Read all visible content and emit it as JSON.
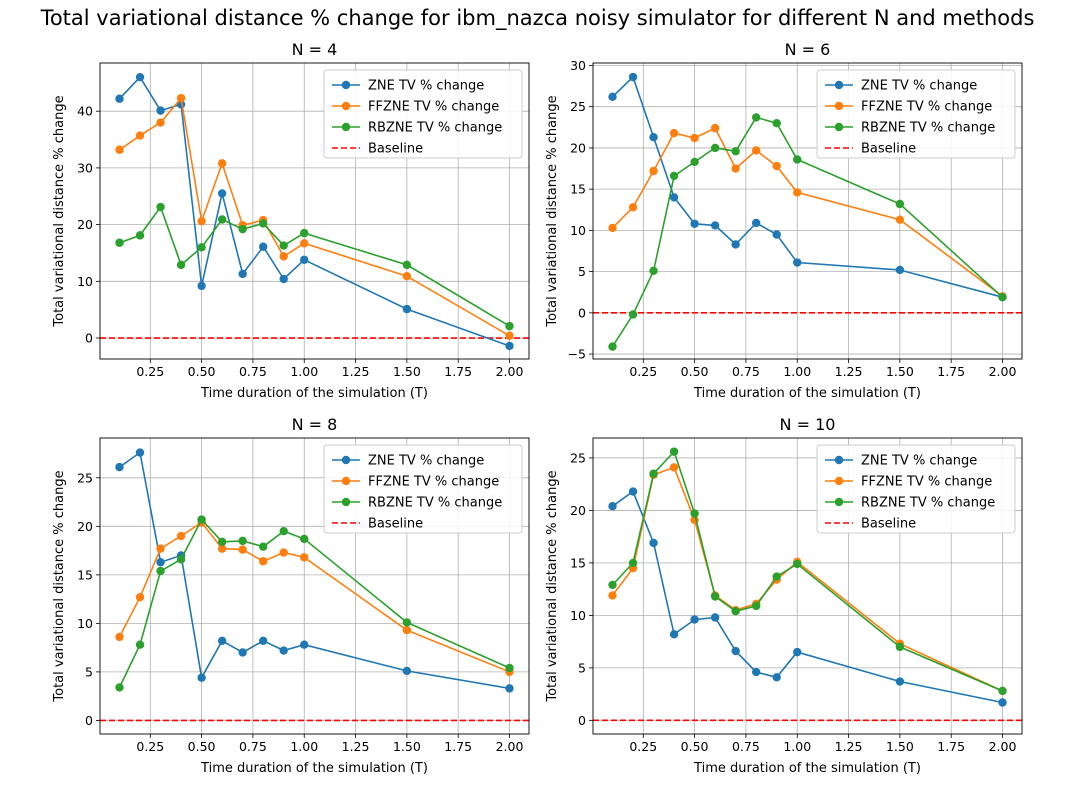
{
  "figure": {
    "title": "Total variational distance % change for ibm_nazca noisy simulator for different N and methods"
  },
  "colors": {
    "ZNE": "#1f77b4",
    "FFZNE": "#ff7f0e",
    "RBZNE": "#2ca02c",
    "Baseline": "#ff0000",
    "grid": "#b0b0b0"
  },
  "chart_data": [
    {
      "type": "line",
      "title": "N = 4",
      "xlabel": "Time duration of the simulation (T)",
      "ylabel": "Total variational distance % change",
      "xlim": [
        0.005,
        2.095
      ],
      "ylim": [
        -3.7,
        48.5
      ],
      "xticks": [
        "0.25",
        "0.50",
        "0.75",
        "1.00",
        "1.25",
        "1.50",
        "1.75",
        "2.00"
      ],
      "yticks": [
        "0",
        "10",
        "20",
        "30",
        "40"
      ],
      "grid": true,
      "legend_position": "top-right",
      "x": [
        0.1,
        0.2,
        0.3,
        0.4,
        0.5,
        0.6,
        0.7,
        0.8,
        0.9,
        1.0,
        1.5,
        2.0
      ],
      "series": [
        {
          "name": "ZNE TV % change",
          "values": [
            42.2,
            46.0,
            40.1,
            41.2,
            9.2,
            25.5,
            11.3,
            16.1,
            10.4,
            13.8,
            5.1,
            -1.4
          ]
        },
        {
          "name": "FFZNE TV % change",
          "values": [
            33.2,
            35.7,
            38.0,
            42.3,
            20.6,
            30.8,
            19.9,
            20.8,
            14.4,
            16.7,
            10.9,
            0.4
          ]
        },
        {
          "name": "RBZNE TV % change",
          "values": [
            16.8,
            18.1,
            23.1,
            12.9,
            16.0,
            20.9,
            19.2,
            20.2,
            16.3,
            18.5,
            12.9,
            2.1
          ]
        }
      ],
      "baseline": {
        "name": "Baseline",
        "value": 0
      }
    },
    {
      "type": "line",
      "title": "N = 6",
      "xlabel": "Time duration of the simulation (T)",
      "ylabel": "Total variational distance % change",
      "xlim": [
        0.005,
        2.095
      ],
      "ylim": [
        -5.6,
        30.3
      ],
      "xticks": [
        "0.25",
        "0.50",
        "0.75",
        "1.00",
        "1.25",
        "1.50",
        "1.75",
        "2.00"
      ],
      "yticks": [
        "−5",
        "0",
        "5",
        "10",
        "15",
        "20",
        "25",
        "30"
      ],
      "grid": true,
      "legend_position": "top-right",
      "x": [
        0.1,
        0.2,
        0.3,
        0.4,
        0.5,
        0.6,
        0.7,
        0.8,
        0.9,
        1.0,
        1.5,
        2.0
      ],
      "series": [
        {
          "name": "ZNE TV % change",
          "values": [
            26.2,
            28.6,
            21.3,
            14.0,
            10.8,
            10.6,
            8.3,
            10.9,
            9.5,
            6.1,
            5.2,
            1.9
          ]
        },
        {
          "name": "FFZNE TV % change",
          "values": [
            10.3,
            12.8,
            17.2,
            21.8,
            21.2,
            22.4,
            17.5,
            19.7,
            17.8,
            14.6,
            11.3,
            2.0
          ]
        },
        {
          "name": "RBZNE TV % change",
          "values": [
            -4.1,
            -0.2,
            5.1,
            16.6,
            18.3,
            20.0,
            19.6,
            23.7,
            23.0,
            18.6,
            13.2,
            1.9
          ]
        }
      ],
      "baseline": {
        "name": "Baseline",
        "value": 0
      }
    },
    {
      "type": "line",
      "title": "N = 8",
      "xlabel": "Time duration of the simulation (T)",
      "ylabel": "Total variational distance % change",
      "xlim": [
        0.005,
        2.095
      ],
      "ylim": [
        -1.4,
        29.1
      ],
      "xticks": [
        "0.25",
        "0.50",
        "0.75",
        "1.00",
        "1.25",
        "1.50",
        "1.75",
        "2.00"
      ],
      "yticks": [
        "0",
        "5",
        "10",
        "15",
        "20",
        "25"
      ],
      "grid": true,
      "legend_position": "top-right",
      "x": [
        0.1,
        0.2,
        0.3,
        0.4,
        0.5,
        0.6,
        0.7,
        0.8,
        0.9,
        1.0,
        1.5,
        2.0
      ],
      "series": [
        {
          "name": "ZNE TV % change",
          "values": [
            26.1,
            27.6,
            16.3,
            17.0,
            4.4,
            8.2,
            7.0,
            8.2,
            7.2,
            7.8,
            5.1,
            3.3
          ]
        },
        {
          "name": "FFZNE TV % change",
          "values": [
            8.6,
            12.7,
            17.7,
            19.0,
            20.4,
            17.7,
            17.6,
            16.4,
            17.3,
            16.8,
            9.3,
            5.0
          ]
        },
        {
          "name": "RBZNE TV % change",
          "values": [
            3.4,
            7.8,
            15.4,
            16.6,
            20.7,
            18.4,
            18.5,
            17.9,
            19.5,
            18.7,
            10.1,
            5.4
          ]
        }
      ],
      "baseline": {
        "name": "Baseline",
        "value": 0
      }
    },
    {
      "type": "line",
      "title": "N = 10",
      "xlabel": "Time duration of the simulation (T)",
      "ylabel": "Total variational distance % change",
      "xlim": [
        0.005,
        2.095
      ],
      "ylim": [
        -1.3,
        26.9
      ],
      "xticks": [
        "0.25",
        "0.50",
        "0.75",
        "1.00",
        "1.25",
        "1.50",
        "1.75",
        "2.00"
      ],
      "yticks": [
        "0",
        "5",
        "10",
        "15",
        "20",
        "25"
      ],
      "grid": true,
      "legend_position": "top-right",
      "x": [
        0.1,
        0.2,
        0.3,
        0.4,
        0.5,
        0.6,
        0.7,
        0.8,
        0.9,
        1.0,
        1.5,
        2.0
      ],
      "series": [
        {
          "name": "ZNE TV % change",
          "values": [
            20.4,
            21.8,
            16.9,
            8.2,
            9.6,
            9.8,
            6.6,
            4.6,
            4.1,
            6.5,
            3.7,
            1.7
          ]
        },
        {
          "name": "FFZNE TV % change",
          "values": [
            11.9,
            14.5,
            23.4,
            24.1,
            19.1,
            11.9,
            10.5,
            11.1,
            13.4,
            15.1,
            7.3,
            2.8
          ]
        },
        {
          "name": "RBZNE TV % change",
          "values": [
            12.9,
            15.0,
            23.5,
            25.6,
            19.7,
            11.8,
            10.4,
            10.9,
            13.7,
            14.9,
            7.0,
            2.8
          ]
        }
      ],
      "baseline": {
        "name": "Baseline",
        "value": 0
      }
    }
  ]
}
